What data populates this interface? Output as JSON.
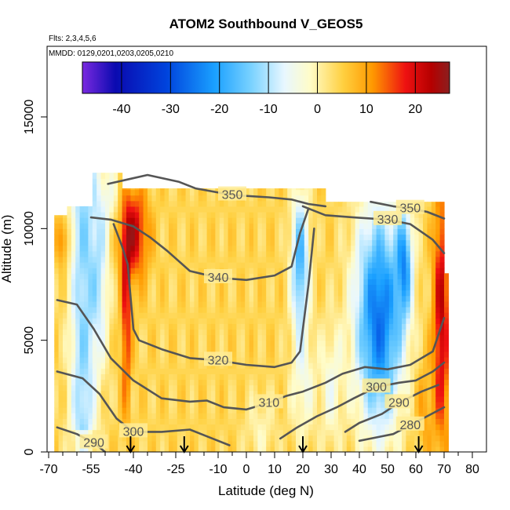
{
  "chart_data": {
    "type": "heatmap",
    "title": "ATOM2 Southbound V_GEOS5",
    "subtitle_lines": [
      "Flts: 2,3,4,5,6",
      "MMDD: 0129,0201,0203,0205,0210"
    ],
    "xlabel": "Latitude (deg N)",
    "ylabel": "Altitude (m)",
    "xlim": [
      -70,
      80
    ],
    "ylim": [
      0,
      17500
    ],
    "x_ticks": [
      -70,
      -55,
      -40,
      -25,
      -10,
      0,
      10,
      20,
      30,
      40,
      50,
      60,
      70,
      80
    ],
    "y_ticks": [
      0,
      5000,
      10000,
      15000
    ],
    "colorbar": {
      "range": [
        -48,
        27
      ],
      "ticks": [
        -40,
        -30,
        -20,
        -10,
        0,
        10,
        20
      ],
      "colors": [
        "#6a1fd8",
        "#0a0ab0",
        "#0044dd",
        "#1aa0ff",
        "#5cc8ff",
        "#d9f1ff",
        "#fffcc8",
        "#ffd040",
        "#ff9900",
        "#ee1111",
        "#b50000",
        "#8b1f1f"
      ]
    },
    "contours": [
      {
        "label": "350",
        "points": [
          [
            -49,
            12000
          ],
          [
            -42,
            12200
          ],
          [
            -35,
            12400
          ],
          [
            -24,
            12100
          ],
          [
            -18,
            11800
          ],
          [
            -5,
            11500
          ],
          [
            8,
            11400
          ],
          [
            16,
            11300
          ],
          [
            22,
            11100
          ],
          [
            28,
            11000
          ]
        ]
      },
      {
        "label": "350",
        "points": [
          [
            44,
            11200
          ],
          [
            52,
            11000
          ],
          [
            58,
            10900
          ],
          [
            64,
            10750
          ],
          [
            70,
            10450
          ]
        ]
      },
      {
        "label": "340",
        "points": [
          [
            -55,
            10500
          ],
          [
            -48,
            10400
          ],
          [
            -40,
            10100
          ],
          [
            -34,
            9600
          ],
          [
            -28,
            9000
          ],
          [
            -20,
            8100
          ],
          [
            -10,
            7800
          ],
          [
            0,
            7700
          ],
          [
            10,
            7900
          ],
          [
            16,
            8300
          ],
          [
            19,
            9800
          ],
          [
            22,
            10900
          ]
        ]
      },
      {
        "label": "330",
        "points": [
          [
            20,
            11000
          ],
          [
            28,
            10600
          ],
          [
            38,
            10500
          ],
          [
            50,
            10400
          ],
          [
            58,
            10200
          ],
          [
            66,
            9500
          ],
          [
            70,
            8900
          ]
        ]
      },
      {
        "label": "320",
        "points": [
          [
            -47,
            10200
          ],
          [
            -44,
            9200
          ],
          [
            -42,
            8400
          ],
          [
            -40,
            5500
          ],
          [
            -38,
            5000
          ],
          [
            -30,
            4600
          ],
          [
            -20,
            4200
          ],
          [
            -10,
            4100
          ],
          [
            0,
            3900
          ],
          [
            10,
            3800
          ],
          [
            16,
            4000
          ],
          [
            19,
            4500
          ],
          [
            22,
            7500
          ],
          [
            24,
            10000
          ]
        ]
      },
      {
        "label": "310",
        "points": [
          [
            -67,
            6800
          ],
          [
            -60,
            6600
          ],
          [
            -54,
            5500
          ],
          [
            -48,
            4200
          ],
          [
            -40,
            3200
          ],
          [
            -30,
            2400
          ],
          [
            -20,
            2250
          ],
          [
            -14,
            2300
          ],
          [
            -8,
            2000
          ],
          [
            0,
            1900
          ],
          [
            8,
            2200
          ],
          [
            14,
            2500
          ],
          [
            20,
            2700
          ],
          [
            28,
            3100
          ],
          [
            34,
            3500
          ],
          [
            42,
            3800
          ],
          [
            50,
            3700
          ],
          [
            58,
            3900
          ],
          [
            66,
            4500
          ],
          [
            70,
            6000
          ]
        ]
      },
      {
        "label": "300",
        "points": [
          [
            -67,
            3600
          ],
          [
            -58,
            3300
          ],
          [
            -52,
            2600
          ],
          [
            -46,
            1500
          ],
          [
            -40,
            900
          ],
          [
            -30,
            900
          ],
          [
            -20,
            1000
          ],
          [
            -12,
            600
          ],
          [
            -6,
            300
          ]
        ]
      },
      {
        "label": "300",
        "points": [
          [
            12,
            600
          ],
          [
            18,
            1100
          ],
          [
            25,
            1600
          ],
          [
            32,
            2000
          ],
          [
            38,
            2400
          ],
          [
            46,
            2900
          ],
          [
            54,
            3100
          ],
          [
            60,
            3200
          ],
          [
            66,
            3600
          ],
          [
            70,
            4000
          ]
        ]
      },
      {
        "label": "290",
        "points": [
          [
            -67,
            1100
          ],
          [
            -60,
            800
          ],
          [
            -54,
            400
          ],
          [
            -50,
            0
          ]
        ]
      },
      {
        "label": "290",
        "points": [
          [
            35,
            900
          ],
          [
            40,
            1300
          ],
          [
            48,
            1700
          ],
          [
            54,
            2200
          ],
          [
            62,
            2700
          ],
          [
            68,
            3000
          ]
        ]
      },
      {
        "label": "280",
        "points": [
          [
            40,
            500
          ],
          [
            46,
            650
          ],
          [
            52,
            800
          ],
          [
            58,
            1200
          ],
          [
            64,
            1600
          ],
          [
            70,
            2000
          ]
        ]
      }
    ],
    "flight_markers_lat": [
      -41,
      -22,
      20,
      61
    ],
    "data_extent": {
      "lat_range": [
        -68,
        71
      ],
      "alt_range": [
        0,
        12500
      ]
    }
  }
}
